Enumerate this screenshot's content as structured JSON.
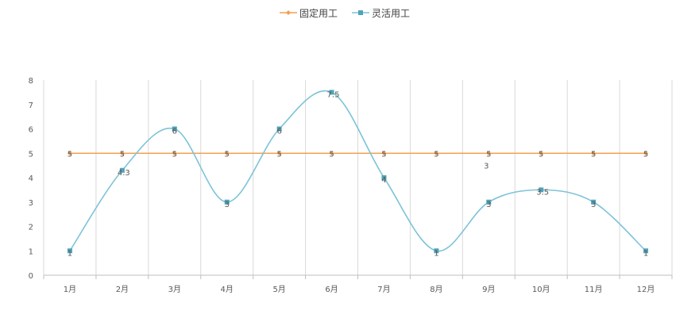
{
  "chart_data": {
    "type": "line",
    "title": "",
    "xlabel": "",
    "ylabel": "",
    "ylim": [
      0,
      8
    ],
    "yticks": [
      0,
      1,
      2,
      3,
      4,
      5,
      6,
      7,
      8
    ],
    "categories": [
      "1月",
      "2月",
      "3月",
      "4月",
      "5月",
      "6月",
      "7月",
      "8月",
      "9月",
      "10月",
      "11月",
      "12月"
    ],
    "grid": {
      "vertical": true,
      "horizontal": false
    },
    "legend": {
      "position": "top-center"
    },
    "series": [
      {
        "name": "固定用工",
        "color": "#F0A050",
        "marker": "diamond",
        "smooth": false,
        "values": [
          5,
          5,
          5,
          5,
          5,
          5,
          5,
          5,
          5,
          5,
          5,
          5
        ],
        "labels": [
          "5",
          "5",
          "5",
          "5",
          "5",
          "5",
          "5",
          "5",
          "5",
          "5",
          "5",
          "5"
        ]
      },
      {
        "name": "灵活用工",
        "color": "#7DC3D8",
        "marker_color": "#4FA3B8",
        "marker": "square",
        "smooth": true,
        "values": [
          1,
          4.3,
          6,
          3,
          6,
          7.5,
          4,
          1,
          3,
          3.5,
          3,
          1
        ],
        "labels": [
          "1",
          "4.3",
          "6",
          "3",
          "6",
          "7.5",
          "4",
          "1",
          "3",
          "3.5",
          "3",
          "1"
        ]
      }
    ]
  },
  "annotations": [
    {
      "text": "3",
      "x_index": 3.56,
      "y": 4.5
    }
  ]
}
